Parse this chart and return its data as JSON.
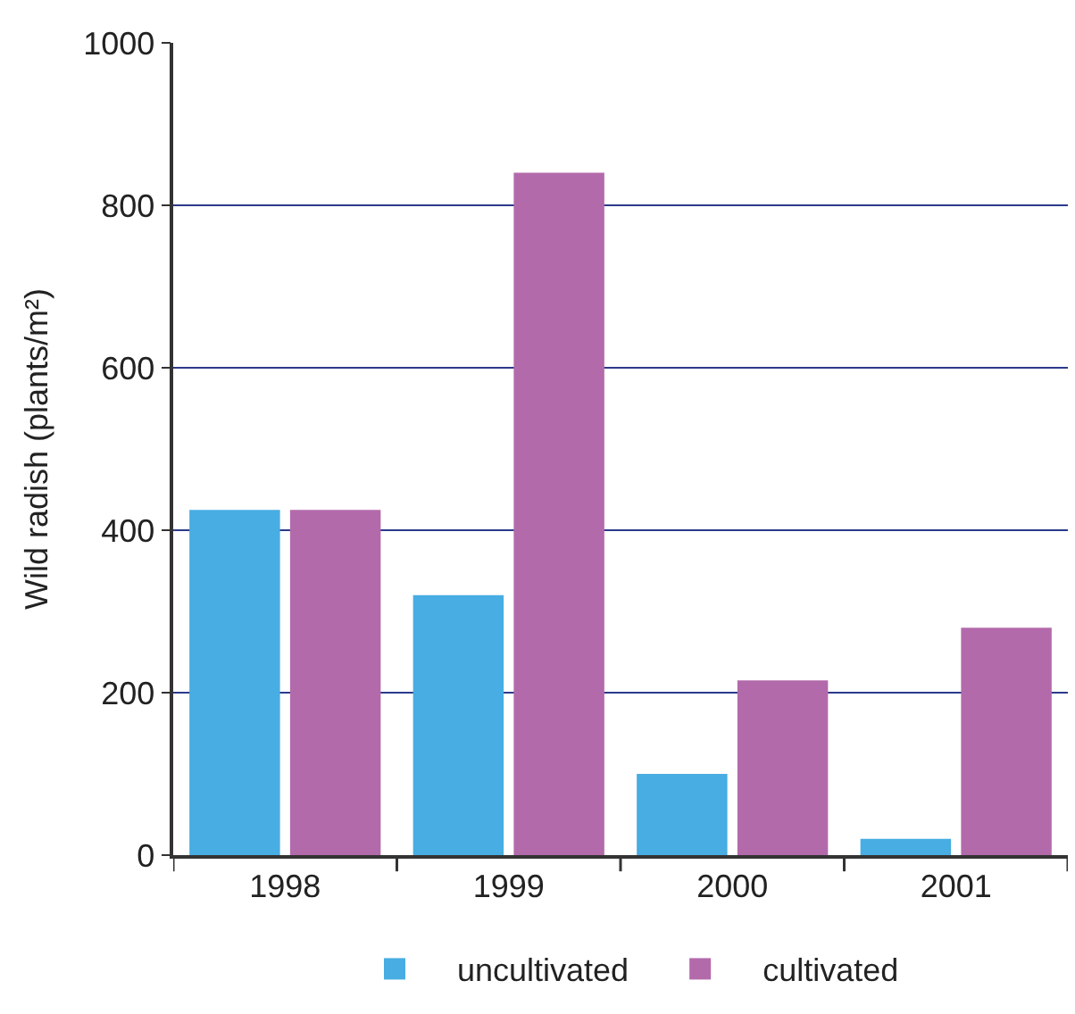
{
  "chart_data": {
    "type": "bar",
    "ylabel": "Wild radish (plants/m²)",
    "categories": [
      "1998",
      "1999",
      "2000",
      "2001"
    ],
    "series": [
      {
        "name": "uncultivated",
        "color": "#47ade2",
        "values": [
          425,
          320,
          100,
          20
        ]
      },
      {
        "name": "cultivated",
        "color": "#b36aab",
        "values": [
          425,
          840,
          215,
          280
        ]
      }
    ],
    "ylim": [
      0,
      1000
    ],
    "yticks": [
      0,
      200,
      400,
      600,
      800,
      1000
    ],
    "grid": "y",
    "legend": "bottom"
  }
}
